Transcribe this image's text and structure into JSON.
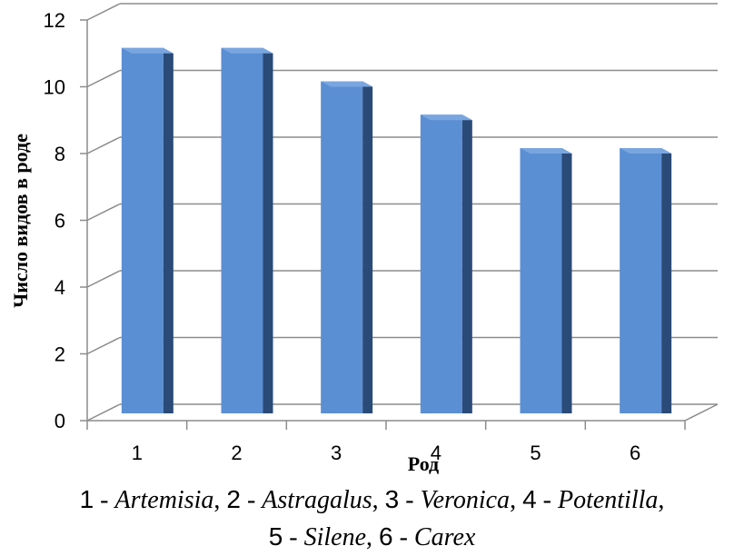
{
  "chart_data": {
    "type": "bar",
    "categories": [
      "1",
      "2",
      "3",
      "4",
      "5",
      "6"
    ],
    "values": [
      11,
      11,
      10,
      9,
      8,
      8
    ],
    "title": "",
    "xlabel": "Род",
    "ylabel": "Число видов в роде",
    "ylim": [
      0,
      12
    ],
    "yticks": [
      "0",
      "2",
      "4",
      "6",
      "8",
      "10",
      "12"
    ],
    "grid": true,
    "legend": "none",
    "bar_color": "#5b8fd3",
    "bar_side_color": "#2a4a78"
  },
  "caption": {
    "items": [
      {
        "num": "1",
        "sep": " - ",
        "name": "Artemisia",
        "after": ", "
      },
      {
        "num": "2",
        "sep": " - ",
        "name": "Astragalus",
        "after": ", "
      },
      {
        "num": "3",
        "sep": " - ",
        "name": "Veronica",
        "after": ", "
      },
      {
        "num": "4",
        "sep": " - ",
        "name": "Potentilla",
        "after": ", "
      },
      {
        "num": "5",
        "sep": " - ",
        "name": "Silene",
        "after": ", "
      },
      {
        "num": "6",
        "sep": " - ",
        "name": "Carex",
        "after": ""
      }
    ]
  }
}
